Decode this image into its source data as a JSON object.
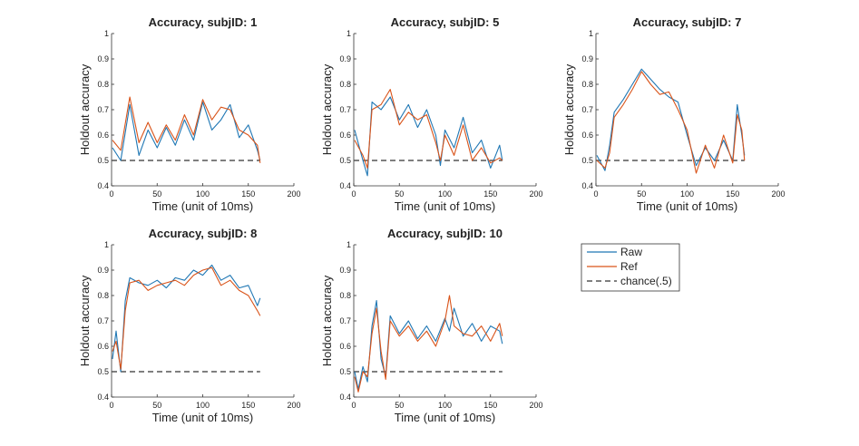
{
  "colors": {
    "raw": "#1f77b4",
    "ref": "#d95319",
    "chance": "#555555"
  },
  "legend": {
    "items": [
      {
        "label": "Raw",
        "series": "raw"
      },
      {
        "label": "Ref",
        "series": "ref"
      },
      {
        "label": "chance(.5)",
        "series": "chance"
      }
    ]
  },
  "chart_data": [
    {
      "type": "line",
      "title": "Accuracy, subjID: 1",
      "xlabel": "Time (unit of 10ms)",
      "ylabel": "Holdout accuracy",
      "xlim": [
        0,
        200
      ],
      "ylim": [
        0.4,
        1
      ],
      "xticks": [
        0,
        50,
        100,
        150,
        200
      ],
      "yticks": [
        0.4,
        0.5,
        0.6,
        0.7,
        0.8,
        0.9,
        1
      ],
      "x": [
        1,
        10,
        20,
        30,
        40,
        50,
        60,
        70,
        80,
        90,
        100,
        110,
        120,
        130,
        140,
        150,
        160,
        163
      ],
      "series": [
        {
          "name": "Raw",
          "values": [
            0.55,
            0.5,
            0.72,
            0.52,
            0.62,
            0.55,
            0.63,
            0.56,
            0.66,
            0.58,
            0.73,
            0.62,
            0.66,
            0.72,
            0.59,
            0.64,
            0.54,
            0.5
          ]
        },
        {
          "name": "Ref",
          "values": [
            0.58,
            0.54,
            0.75,
            0.57,
            0.65,
            0.57,
            0.64,
            0.58,
            0.68,
            0.6,
            0.74,
            0.66,
            0.71,
            0.7,
            0.62,
            0.6,
            0.56,
            0.49
          ]
        }
      ],
      "chance": {
        "value": 0.5,
        "x": [
          0,
          163
        ]
      }
    },
    {
      "type": "line",
      "title": "Accuracy, subjID: 5",
      "xlabel": "Time (unit of 10ms)",
      "ylabel": "Holdout accuracy",
      "xlim": [
        0,
        200
      ],
      "ylim": [
        0.4,
        1
      ],
      "xticks": [
        0,
        50,
        100,
        150,
        200
      ],
      "yticks": [
        0.4,
        0.5,
        0.6,
        0.7,
        0.8,
        0.9,
        1
      ],
      "x": [
        1,
        10,
        15,
        20,
        30,
        40,
        50,
        60,
        70,
        80,
        90,
        95,
        100,
        110,
        120,
        130,
        140,
        150,
        160,
        163
      ],
      "series": [
        {
          "name": "Raw",
          "values": [
            0.62,
            0.5,
            0.44,
            0.73,
            0.7,
            0.75,
            0.66,
            0.72,
            0.63,
            0.7,
            0.6,
            0.48,
            0.62,
            0.55,
            0.67,
            0.53,
            0.58,
            0.47,
            0.56,
            0.5
          ]
        },
        {
          "name": "Ref",
          "values": [
            0.58,
            0.52,
            0.47,
            0.7,
            0.72,
            0.78,
            0.64,
            0.69,
            0.66,
            0.68,
            0.57,
            0.5,
            0.6,
            0.52,
            0.64,
            0.5,
            0.55,
            0.49,
            0.51,
            0.5
          ]
        }
      ],
      "chance": {
        "value": 0.5,
        "x": [
          0,
          163
        ]
      }
    },
    {
      "type": "line",
      "title": "Accuracy, subjID: 7",
      "xlabel": "Time (unit of 10ms)",
      "ylabel": "Holdout accuracy",
      "xlim": [
        0,
        200
      ],
      "ylim": [
        0.4,
        1
      ],
      "xticks": [
        0,
        50,
        100,
        150,
        200
      ],
      "yticks": [
        0.4,
        0.5,
        0.6,
        0.7,
        0.8,
        0.9,
        1
      ],
      "x": [
        1,
        10,
        15,
        20,
        30,
        40,
        50,
        60,
        70,
        80,
        90,
        100,
        110,
        120,
        130,
        140,
        150,
        155,
        160,
        163
      ],
      "series": [
        {
          "name": "Raw",
          "values": [
            0.52,
            0.46,
            0.56,
            0.69,
            0.74,
            0.8,
            0.86,
            0.82,
            0.78,
            0.75,
            0.73,
            0.6,
            0.48,
            0.55,
            0.5,
            0.58,
            0.5,
            0.72,
            0.6,
            0.52
          ]
        },
        {
          "name": "Ref",
          "values": [
            0.5,
            0.47,
            0.53,
            0.67,
            0.72,
            0.78,
            0.85,
            0.8,
            0.76,
            0.77,
            0.7,
            0.62,
            0.45,
            0.56,
            0.47,
            0.6,
            0.49,
            0.68,
            0.62,
            0.5
          ]
        }
      ],
      "chance": {
        "value": 0.5,
        "x": [
          0,
          163
        ]
      }
    },
    {
      "type": "line",
      "title": "Accuracy, subjID: 8",
      "xlabel": "Time (unit of 10ms)",
      "ylabel": "Holdout accuracy",
      "xlim": [
        0,
        200
      ],
      "ylim": [
        0.4,
        1
      ],
      "xticks": [
        0,
        50,
        100,
        150,
        200
      ],
      "yticks": [
        0.4,
        0.5,
        0.6,
        0.7,
        0.8,
        0.9,
        1
      ],
      "x": [
        1,
        5,
        10,
        15,
        20,
        30,
        40,
        50,
        60,
        70,
        80,
        90,
        100,
        110,
        120,
        130,
        140,
        150,
        160,
        163
      ],
      "series": [
        {
          "name": "Raw",
          "values": [
            0.55,
            0.66,
            0.5,
            0.78,
            0.87,
            0.85,
            0.84,
            0.86,
            0.83,
            0.87,
            0.86,
            0.9,
            0.88,
            0.92,
            0.86,
            0.88,
            0.83,
            0.84,
            0.76,
            0.79
          ]
        },
        {
          "name": "Ref",
          "values": [
            0.58,
            0.62,
            0.51,
            0.74,
            0.85,
            0.86,
            0.82,
            0.84,
            0.85,
            0.86,
            0.84,
            0.88,
            0.9,
            0.91,
            0.84,
            0.86,
            0.82,
            0.8,
            0.74,
            0.72
          ]
        }
      ],
      "chance": {
        "value": 0.5,
        "x": [
          0,
          163
        ]
      }
    },
    {
      "type": "line",
      "title": "Accuracy, subjID: 10",
      "xlabel": "Time (unit of 10ms)",
      "ylabel": "Holdout accuracy",
      "xlim": [
        0,
        200
      ],
      "ylim": [
        0.4,
        1
      ],
      "xticks": [
        0,
        50,
        100,
        150,
        200
      ],
      "yticks": [
        0.4,
        0.5,
        0.6,
        0.7,
        0.8,
        0.9,
        1
      ],
      "x": [
        1,
        5,
        10,
        15,
        20,
        25,
        30,
        35,
        40,
        50,
        60,
        70,
        80,
        90,
        100,
        105,
        110,
        120,
        130,
        140,
        150,
        160,
        163
      ],
      "series": [
        {
          "name": "Raw",
          "values": [
            0.5,
            0.43,
            0.52,
            0.46,
            0.68,
            0.78,
            0.55,
            0.48,
            0.72,
            0.65,
            0.7,
            0.63,
            0.68,
            0.62,
            0.71,
            0.66,
            0.75,
            0.64,
            0.69,
            0.62,
            0.68,
            0.66,
            0.61
          ]
        },
        {
          "name": "Ref",
          "values": [
            0.48,
            0.42,
            0.5,
            0.48,
            0.65,
            0.75,
            0.58,
            0.47,
            0.7,
            0.64,
            0.68,
            0.62,
            0.66,
            0.6,
            0.7,
            0.8,
            0.68,
            0.65,
            0.64,
            0.68,
            0.62,
            0.69,
            0.64
          ]
        }
      ],
      "chance": {
        "value": 0.5,
        "x": [
          0,
          163
        ]
      }
    }
  ]
}
